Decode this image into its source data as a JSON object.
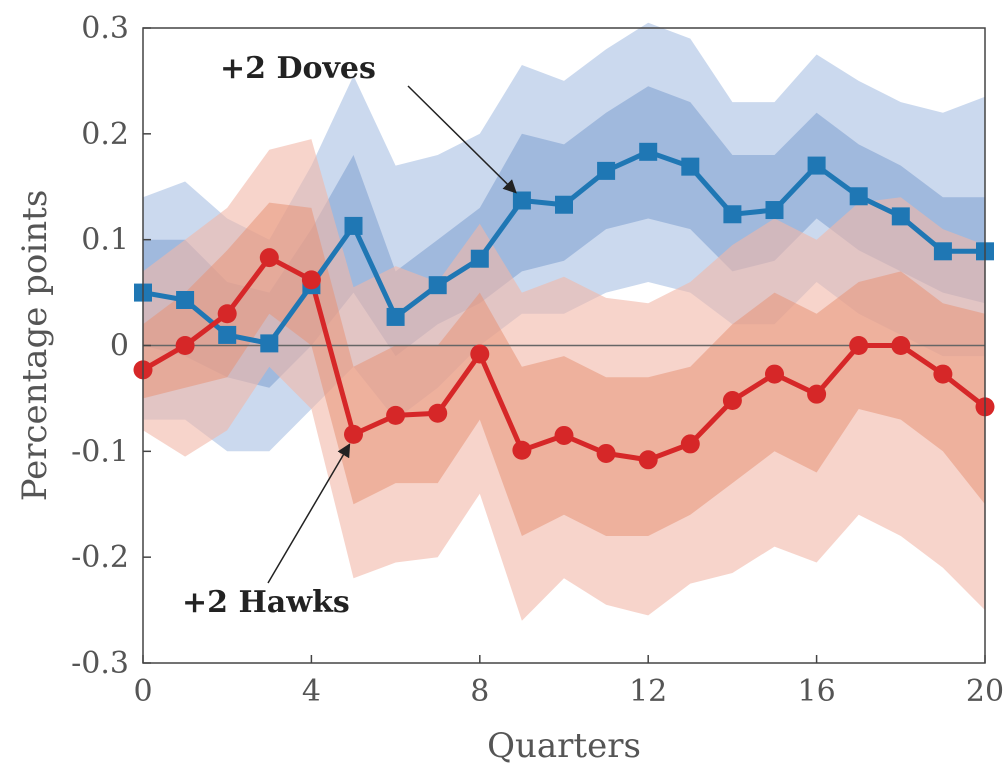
{
  "chart_data": {
    "type": "line",
    "xlabel": "Quarters",
    "ylabel": "Percentage points",
    "xlim": [
      0,
      20
    ],
    "ylim": [
      -0.3,
      0.3
    ],
    "x_ticks": [
      0,
      4,
      8,
      12,
      16,
      20
    ],
    "y_ticks": [
      0.3,
      0.2,
      0.1,
      0,
      -0.1,
      -0.2,
      -0.3
    ],
    "y_tick_labels": [
      "0.3",
      "0.2",
      "0.1",
      "0",
      "-0.1",
      "-0.2",
      "-0.3"
    ],
    "zero_line": true,
    "grid": false,
    "x": [
      0,
      1,
      2,
      3,
      4,
      5,
      6,
      7,
      8,
      9,
      10,
      11,
      12,
      13,
      14,
      15,
      16,
      17,
      18,
      19,
      20
    ],
    "series": [
      {
        "name": "+2 Doves",
        "color": "#1f77b4",
        "marker": "square",
        "values": [
          0.05,
          0.043,
          0.01,
          0.002,
          0.057,
          0.113,
          0.027,
          0.057,
          0.082,
          0.137,
          0.133,
          0.165,
          0.183,
          0.169,
          0.124,
          0.128,
          0.17,
          0.141,
          0.122,
          0.089,
          0.089
        ],
        "band_inner": {
          "color": "#7d9fd0",
          "lower": [
            0.0,
            -0.01,
            -0.03,
            -0.04,
            0.0,
            0.05,
            -0.01,
            0.02,
            0.04,
            0.07,
            0.08,
            0.11,
            0.12,
            0.11,
            0.07,
            0.08,
            0.12,
            0.09,
            0.07,
            0.05,
            0.04
          ],
          "upper": [
            0.1,
            0.1,
            0.06,
            0.05,
            0.11,
            0.18,
            0.07,
            0.1,
            0.13,
            0.2,
            0.19,
            0.22,
            0.245,
            0.23,
            0.18,
            0.18,
            0.22,
            0.19,
            0.17,
            0.14,
            0.14
          ]
        },
        "band_outer": {
          "color": "#a9bfe3",
          "lower": [
            -0.07,
            -0.07,
            -0.1,
            -0.1,
            -0.06,
            -0.02,
            -0.07,
            -0.04,
            0.0,
            0.03,
            0.03,
            0.05,
            0.06,
            0.05,
            0.02,
            0.02,
            0.06,
            0.03,
            0.01,
            -0.01,
            -0.01
          ],
          "upper": [
            0.14,
            0.155,
            0.12,
            0.1,
            0.17,
            0.255,
            0.17,
            0.18,
            0.2,
            0.265,
            0.25,
            0.28,
            0.305,
            0.29,
            0.23,
            0.23,
            0.275,
            0.25,
            0.23,
            0.22,
            0.235
          ]
        }
      },
      {
        "name": "+2 Hawks",
        "color": "#d62728",
        "marker": "circle",
        "values": [
          -0.023,
          0.0,
          0.03,
          0.083,
          0.062,
          -0.084,
          -0.066,
          -0.064,
          -0.008,
          -0.099,
          -0.085,
          -0.102,
          -0.108,
          -0.093,
          -0.052,
          -0.027,
          -0.046,
          0.0,
          0.0,
          -0.027,
          -0.058
        ],
        "band_inner": {
          "color": "#e89478",
          "lower": [
            -0.05,
            -0.04,
            -0.03,
            0.03,
            0.0,
            -0.15,
            -0.13,
            -0.13,
            -0.07,
            -0.18,
            -0.16,
            -0.18,
            -0.18,
            -0.16,
            -0.13,
            -0.1,
            -0.12,
            -0.06,
            -0.07,
            -0.1,
            -0.15
          ],
          "upper": [
            0.02,
            0.05,
            0.09,
            0.135,
            0.13,
            -0.02,
            0.0,
            0.0,
            0.05,
            -0.02,
            -0.01,
            -0.03,
            -0.03,
            -0.02,
            0.02,
            0.05,
            0.03,
            0.06,
            0.07,
            0.04,
            0.03
          ]
        },
        "band_outer": {
          "color": "#f2b8a8",
          "lower": [
            -0.08,
            -0.105,
            -0.08,
            -0.02,
            -0.06,
            -0.22,
            -0.205,
            -0.2,
            -0.14,
            -0.26,
            -0.22,
            -0.245,
            -0.255,
            -0.225,
            -0.215,
            -0.19,
            -0.205,
            -0.16,
            -0.18,
            -0.21,
            -0.25
          ],
          "upper": [
            0.07,
            0.1,
            0.13,
            0.185,
            0.195,
            0.055,
            0.075,
            0.06,
            0.115,
            0.05,
            0.065,
            0.045,
            0.04,
            0.06,
            0.095,
            0.12,
            0.1,
            0.135,
            0.14,
            0.11,
            0.095
          ]
        }
      }
    ],
    "annotations": [
      {
        "text": "+2 Doves",
        "arrow_to": [
          9,
          0.137
        ]
      },
      {
        "text": "+2 Hawks",
        "arrow_to": [
          5,
          -0.084
        ]
      }
    ]
  }
}
